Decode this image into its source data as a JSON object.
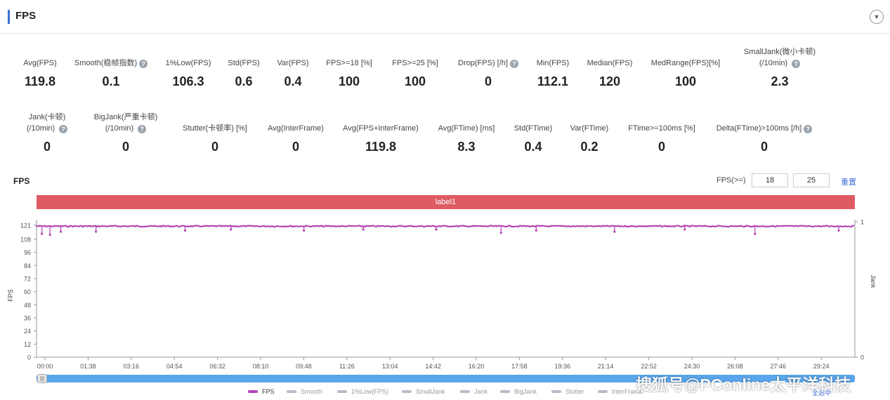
{
  "header": {
    "title": "FPS",
    "collapse_icon": "chevron-down-icon"
  },
  "stats_row1": [
    {
      "label": "Avg(FPS)",
      "value": "119.8"
    },
    {
      "label": "Smooth(稳帧指数)",
      "value": "0.1",
      "help": true
    },
    {
      "label": "1%Low(FPS)",
      "value": "106.3"
    },
    {
      "label": "Std(FPS)",
      "value": "0.6"
    },
    {
      "label": "Var(FPS)",
      "value": "0.4"
    },
    {
      "label": "FPS>=18 [%]",
      "value": "100"
    },
    {
      "label": "FPS>=25 [%]",
      "value": "100"
    },
    {
      "label": "Drop(FPS) [/h]",
      "value": "0",
      "help": true
    },
    {
      "label": "Min(FPS)",
      "value": "112.1"
    },
    {
      "label": "Median(FPS)",
      "value": "120"
    },
    {
      "label": "MedRange(FPS)[%]",
      "value": "100"
    },
    {
      "label": "SmallJank(微小卡顿)",
      "label2": "(/10min)",
      "value": "2.3",
      "help": true
    }
  ],
  "stats_row2": [
    {
      "label": "Jank(卡顿)",
      "label2": "(/10min)",
      "value": "0",
      "help": true
    },
    {
      "label": "BigJank(严重卡顿)",
      "label2": "(/10min)",
      "value": "0",
      "help": true
    },
    {
      "label": "Stutter(卡顿率) [%]",
      "value": "0"
    },
    {
      "label": "Avg(InterFrame)",
      "value": "0"
    },
    {
      "label": "Avg(FPS+InterFrame)",
      "value": "119.8"
    },
    {
      "label": "Avg(FTime) [ms]",
      "value": "8.3"
    },
    {
      "label": "Std(FTime)",
      "value": "0.4"
    },
    {
      "label": "Var(FTime)",
      "value": "0.2"
    },
    {
      "label": "FTime>=100ms [%]",
      "value": "0"
    },
    {
      "label": "Delta(FTime)>100ms [/h]",
      "value": "0",
      "help": true
    }
  ],
  "chart_section": {
    "title": "FPS",
    "threshold_label": "FPS(>=)",
    "threshold_1": "18",
    "threshold_2": "25",
    "reset_label": "重置",
    "label_bar": "label1"
  },
  "chart_data": {
    "type": "line",
    "ylabel": "FPS",
    "y2label": "Jank",
    "yticks": [
      0,
      12,
      24,
      36,
      48,
      60,
      72,
      84,
      96,
      108,
      121
    ],
    "ylim": [
      0,
      126
    ],
    "y2ticks": [
      0,
      1
    ],
    "xticks": [
      "00:00",
      "01:38",
      "03:16",
      "04:54",
      "06:32",
      "08:10",
      "09:48",
      "11:26",
      "13:04",
      "14:42",
      "16:20",
      "17:58",
      "19:36",
      "21:14",
      "22:52",
      "24:30",
      "26:08",
      "27:46",
      "29:24"
    ],
    "series": [
      {
        "name": "FPS",
        "baseline": 120,
        "color": "#b444b4",
        "dips": [
          {
            "t": 0.2,
            "v": 113
          },
          {
            "t": 0.5,
            "v": 112.1
          },
          {
            "t": 0.9,
            "v": 115
          },
          {
            "t": 2.2,
            "v": 115
          },
          {
            "t": 5.5,
            "v": 116
          },
          {
            "t": 7.2,
            "v": 117
          },
          {
            "t": 9.9,
            "v": 116
          },
          {
            "t": 12.1,
            "v": 117
          },
          {
            "t": 14.8,
            "v": 117
          },
          {
            "t": 17.2,
            "v": 114
          },
          {
            "t": 18.5,
            "v": 116
          },
          {
            "t": 21.4,
            "v": 115
          },
          {
            "t": 24.0,
            "v": 117
          },
          {
            "t": 26.6,
            "v": 113
          },
          {
            "t": 29.7,
            "v": 116
          }
        ]
      }
    ],
    "legend": [
      "FPS",
      "Smooth",
      "1%Low(FPS)",
      "SmallJank",
      "Jank",
      "BigJank",
      "Stutter",
      "InterFrame"
    ],
    "legend_select_all": "全选中",
    "legend_placement": "bottom"
  },
  "colors": {
    "accent": "#3b6fd6",
    "label_bar": "#de5b62",
    "fps_line": "#b444b4",
    "slider": "#5aa6ec"
  },
  "watermark": "搜狐号@PConline太平洋科技"
}
